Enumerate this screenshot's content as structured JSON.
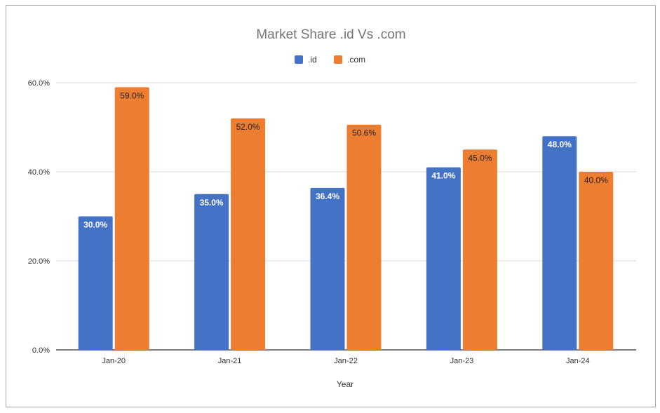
{
  "chart_data": {
    "type": "bar",
    "title": "Market Share .id Vs .com",
    "xlabel": "Year",
    "ylabel": "",
    "categories": [
      "Jan-20",
      "Jan-21",
      "Jan-22",
      "Jan-23",
      "Jan-24"
    ],
    "series": [
      {
        "name": ".id",
        "color": "#4472c4",
        "values": [
          30.0,
          35.0,
          36.4,
          41.0,
          48.0
        ],
        "labels": [
          "30.0%",
          "35.0%",
          "36.4%",
          "41.0%",
          "48.0%"
        ],
        "label_color": "#ffffff"
      },
      {
        "name": ".com",
        "color": "#ed7d31",
        "values": [
          59.0,
          52.0,
          50.6,
          45.0,
          40.0
        ],
        "labels": [
          "59.0%",
          "52.0%",
          "50.6%",
          "45.0%",
          "40.0%"
        ],
        "label_color": "#1f1f1f"
      }
    ],
    "ylim": [
      0,
      60
    ],
    "yticks": [
      0,
      20,
      40,
      60
    ],
    "ytick_labels": [
      "0.0%",
      "20.0%",
      "40.0%",
      "60.0%"
    ],
    "grid": true,
    "legend_position": "top-center"
  }
}
